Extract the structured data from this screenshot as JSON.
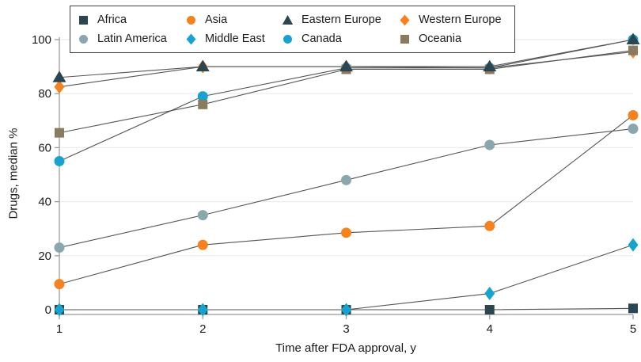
{
  "chart_data": {
    "type": "line",
    "title": "",
    "xlabel": "Time after FDA approval, y",
    "ylabel": "Drugs, median %",
    "x": [
      1,
      2,
      3,
      4,
      5
    ],
    "x_tick_labels": [
      "1",
      "2",
      "3",
      "4",
      "5"
    ],
    "y_ticks": [
      0,
      20,
      40,
      60,
      80,
      100
    ],
    "y_tick_labels": [
      "0",
      "20",
      "40",
      "60",
      "80",
      "100"
    ],
    "xlim": [
      1,
      5
    ],
    "ylim": [
      0,
      100
    ],
    "grid": "horizontal",
    "legend_position": "top-left",
    "series": [
      {
        "name": "Africa",
        "shape": "square",
        "color": "#2b4551",
        "values": [
          0,
          0,
          0,
          0,
          0.5
        ]
      },
      {
        "name": "Asia",
        "shape": "circle",
        "color": "#f5821f",
        "values": [
          9.5,
          24,
          28.5,
          31,
          72
        ]
      },
      {
        "name": "Eastern Europe",
        "shape": "triangle",
        "color": "#2b4551",
        "values": [
          86,
          90,
          90,
          90,
          100
        ]
      },
      {
        "name": "Western Europe",
        "shape": "diamond",
        "color": "#f5821f",
        "values": [
          82.5,
          90,
          90,
          89.5,
          95.5
        ]
      },
      {
        "name": "Latin America",
        "shape": "circle",
        "color": "#8ba7ae",
        "values": [
          23,
          35,
          48,
          61,
          67
        ]
      },
      {
        "name": "Middle East",
        "shape": "diamond",
        "color": "#17a3cd",
        "values": [
          0,
          0,
          0,
          6,
          24
        ]
      },
      {
        "name": "Canada",
        "shape": "circle",
        "color": "#17a3cd",
        "values": [
          55,
          79,
          89.5,
          89.5,
          100
        ]
      },
      {
        "name": "Oceania",
        "shape": "square",
        "color": "#8a7a5f",
        "values": [
          65.5,
          76,
          89,
          89,
          96
        ]
      }
    ],
    "draw_order": [
      "Africa",
      "Western Europe",
      "Canada",
      "Oceania",
      "Latin America",
      "Asia",
      "Middle East",
      "Eastern Europe"
    ],
    "style": {
      "line_color": "#555555",
      "grid_color": "#ececec",
      "axis_color": "#9b9b9b",
      "text_color": "#1a1a1a",
      "background": "#ffffff",
      "legend_border": "#3f3f3f"
    }
  }
}
